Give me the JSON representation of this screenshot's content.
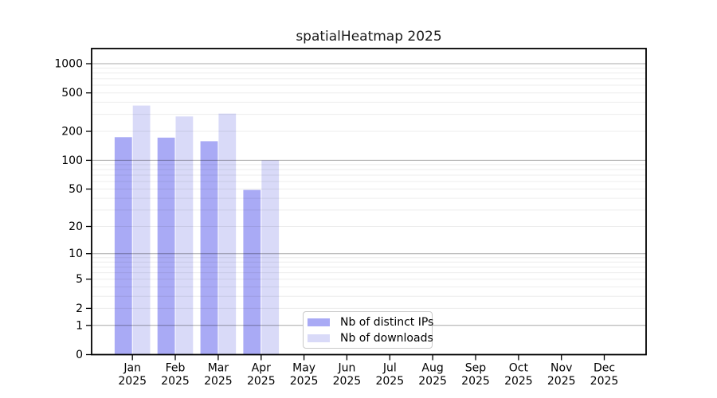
{
  "chart_data": {
    "type": "bar",
    "title": "spatialHeatmap 2025",
    "year_label": "2025",
    "categories": [
      "Jan",
      "Feb",
      "Mar",
      "Apr",
      "May",
      "Jun",
      "Jul",
      "Aug",
      "Sep",
      "Oct",
      "Nov",
      "Dec"
    ],
    "series": [
      {
        "name": "Nb of distinct IPs",
        "color": "#a9aaf5",
        "values": [
          174,
          172,
          158,
          49,
          0,
          0,
          0,
          0,
          0,
          0,
          0,
          0
        ]
      },
      {
        "name": "Nb of downloads",
        "color": "#d9daf8",
        "values": [
          370,
          285,
          305,
          100,
          0,
          0,
          0,
          0,
          0,
          0,
          0,
          0
        ]
      }
    ],
    "y_axis": {
      "scale": "log10(value+1)",
      "tick_labels": [
        0,
        1,
        2,
        5,
        10,
        20,
        50,
        100,
        200,
        500,
        1000
      ],
      "ylim": [
        0,
        1430
      ],
      "grid": "horizontal, minor lines at 2-9 per decade, major at powers of 10"
    },
    "x_axis": {
      "label_format": "month over year, two lines"
    },
    "legend_position": "bottom-center-inside",
    "colors": {
      "axis": "#000000",
      "major_grid": "rgba(0,0,0,0.34)",
      "minor_grid": "rgba(0,0,0,0.075)",
      "text": "#000000"
    }
  }
}
